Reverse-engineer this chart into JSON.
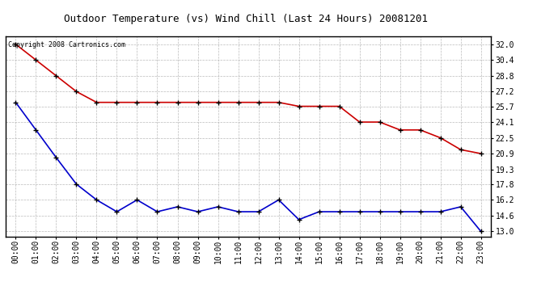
{
  "title": "Outdoor Temperature (vs) Wind Chill (Last 24 Hours) 20081201",
  "copyright": "Copyright 2008 Cartronics.com",
  "x_labels": [
    "00:00",
    "01:00",
    "02:00",
    "03:00",
    "04:00",
    "05:00",
    "06:00",
    "07:00",
    "08:00",
    "09:00",
    "10:00",
    "11:00",
    "12:00",
    "13:00",
    "14:00",
    "15:00",
    "16:00",
    "17:00",
    "18:00",
    "19:00",
    "20:00",
    "21:00",
    "22:00",
    "23:00"
  ],
  "temp_red": [
    32.0,
    30.4,
    28.8,
    27.2,
    26.1,
    26.1,
    26.1,
    26.1,
    26.1,
    26.1,
    26.1,
    26.1,
    26.1,
    26.1,
    25.7,
    25.7,
    25.7,
    24.1,
    24.1,
    23.3,
    23.3,
    22.5,
    21.3,
    20.9
  ],
  "wind_chill_blue": [
    26.1,
    23.3,
    20.5,
    17.8,
    16.2,
    15.0,
    16.2,
    15.0,
    15.5,
    15.0,
    15.5,
    15.0,
    15.0,
    16.2,
    14.2,
    15.0,
    15.0,
    15.0,
    15.0,
    15.0,
    15.0,
    15.0,
    15.5,
    13.0
  ],
  "y_ticks": [
    13.0,
    14.6,
    16.2,
    17.8,
    19.3,
    20.9,
    22.5,
    24.1,
    25.7,
    27.2,
    28.8,
    30.4,
    32.0
  ],
  "ylim": [
    12.5,
    32.8
  ],
  "xlim": [
    -0.5,
    23.5
  ],
  "bg_color": "#ffffff",
  "grid_color": "#aaaaaa",
  "red_color": "#cc0000",
  "blue_color": "#0000cc",
  "title_fontsize": 9,
  "copyright_fontsize": 6,
  "tick_fontsize": 7,
  "border_color": "#000000"
}
